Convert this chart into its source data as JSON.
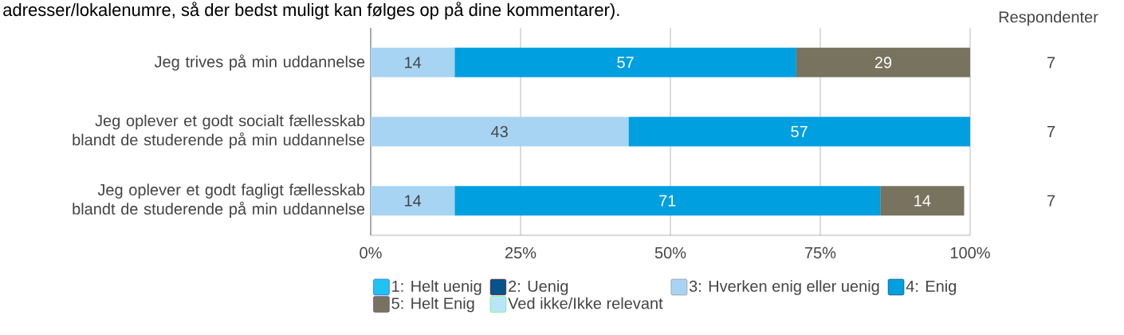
{
  "chart_data": {
    "type": "bar",
    "orientation": "horizontal",
    "stacked": true,
    "grid": "x",
    "legend": "bottom",
    "categories": [
      "Jeg trives på min uddannelse",
      "Jeg oplever et godt socialt fællesskab blandt de studerende på min uddannelse",
      "Jeg oplever et godt fagligt fællesskab blandt de studerende på min uddannelse"
    ],
    "series": [
      {
        "name": "1: Helt uenig",
        "color": "#1fc3f0",
        "values": [
          0,
          0,
          0
        ],
        "value_labels": [
          null,
          null,
          null
        ]
      },
      {
        "name": "2: Uenig",
        "color": "#05548a",
        "values": [
          0,
          0,
          0
        ],
        "value_labels": [
          null,
          null,
          null
        ]
      },
      {
        "name": "3: Hverken enig eller uenig",
        "color": "#a8d4f3",
        "values": [
          14,
          43,
          14
        ],
        "value_labels": [
          "14",
          "43",
          "14"
        ]
      },
      {
        "name": "4: Enig",
        "color": "#009fe0",
        "values": [
          57,
          57,
          71
        ],
        "value_labels": [
          "57",
          "57",
          "71"
        ]
      },
      {
        "name": "5: Helt Enig",
        "color": "#77735f",
        "values": [
          29,
          0,
          14
        ],
        "value_labels": [
          "29",
          null,
          "14"
        ]
      },
      {
        "name": "Ved ikke/Ikke relevant",
        "color": "#b9e5fa",
        "values": [
          0,
          0,
          0
        ],
        "value_labels": [
          null,
          null,
          null
        ]
      }
    ],
    "xlim": [
      0,
      100
    ],
    "xticks": [
      {
        "value": 0,
        "label": "0%"
      },
      {
        "value": 25,
        "label": "25%"
      },
      {
        "value": 50,
        "label": "50%"
      },
      {
        "value": 75,
        "label": "75%"
      },
      {
        "value": 100,
        "label": "100%"
      }
    ],
    "annotations": [
      "adresser/lokalenumre, så der bedst muligt kan følges op på dine kommentarer).",
      "Respondenter",
      "7",
      "7",
      "7"
    ]
  }
}
